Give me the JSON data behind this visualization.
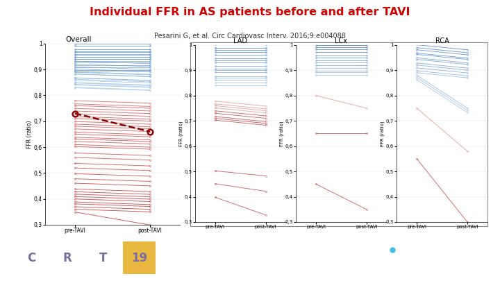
{
  "title": "Individual FFR in AS patients before and after TAVI",
  "subtitle": "Pesarini G, et al. Circ Cardiovasc Interv. 2016;9:e004088",
  "title_color": "#cc0000",
  "subtitle_color": "#333333",
  "overall_label": "Overall",
  "overall_blue_pre": [
    1.0,
    0.99,
    0.98,
    0.97,
    0.97,
    0.96,
    0.96,
    0.95,
    0.95,
    0.94,
    0.94,
    0.93,
    0.93,
    0.93,
    0.92,
    0.92,
    0.91,
    0.91,
    0.9,
    0.9,
    0.9,
    0.89,
    0.89,
    0.89,
    0.88,
    0.88,
    0.87,
    0.87,
    0.86,
    0.86,
    0.85,
    0.85,
    0.84,
    0.84,
    0.83,
    0.83
  ],
  "overall_blue_post": [
    1.0,
    0.99,
    0.98,
    0.97,
    0.97,
    0.96,
    0.96,
    0.95,
    0.95,
    0.94,
    0.94,
    0.93,
    0.93,
    0.92,
    0.92,
    0.91,
    0.91,
    0.9,
    0.9,
    0.9,
    0.89,
    0.89,
    0.88,
    0.88,
    0.87,
    0.87,
    0.86,
    0.86,
    0.85,
    0.85,
    0.84,
    0.84,
    0.83,
    0.83,
    0.82,
    0.82
  ],
  "overall_red_pre": [
    0.78,
    0.77,
    0.76,
    0.75,
    0.74,
    0.73,
    0.72,
    0.71,
    0.7,
    0.69,
    0.68,
    0.67,
    0.66,
    0.65,
    0.64,
    0.63,
    0.62,
    0.61,
    0.6,
    0.58,
    0.56,
    0.54,
    0.52,
    0.5,
    0.48,
    0.46,
    0.44,
    0.43,
    0.42,
    0.41,
    0.4,
    0.39,
    0.38,
    0.37,
    0.36,
    0.35
  ],
  "overall_red_post": [
    0.77,
    0.76,
    0.75,
    0.74,
    0.73,
    0.72,
    0.71,
    0.7,
    0.69,
    0.68,
    0.67,
    0.66,
    0.65,
    0.64,
    0.63,
    0.62,
    0.61,
    0.6,
    0.59,
    0.57,
    0.55,
    0.53,
    0.51,
    0.49,
    0.47,
    0.45,
    0.43,
    0.42,
    0.41,
    0.4,
    0.39,
    0.38,
    0.37,
    0.36,
    0.35,
    0.3
  ],
  "mean_pre": 0.73,
  "mean_post": 0.66,
  "lad_blue_pre": [
    1.0,
    0.99,
    0.98,
    0.97,
    0.96,
    0.95,
    0.94,
    0.93,
    0.92,
    0.91,
    0.9,
    0.89,
    0.88,
    0.87,
    0.86,
    0.85,
    0.84
  ],
  "lad_blue_post": [
    1.0,
    0.99,
    0.98,
    0.97,
    0.96,
    0.95,
    0.94,
    0.93,
    0.92,
    0.91,
    0.9,
    0.89,
    0.88,
    0.87,
    0.86,
    0.85,
    0.84
  ],
  "lad_red_pre": [
    0.78,
    0.77,
    0.76,
    0.75,
    0.74,
    0.73,
    0.72,
    0.71,
    0.7,
    0.5,
    0.45,
    0.4
  ],
  "lad_red_post": [
    0.76,
    0.75,
    0.74,
    0.73,
    0.72,
    0.71,
    0.7,
    0.69,
    0.68,
    0.48,
    0.42,
    0.33
  ],
  "lcx_blue_pre": [
    1.0,
    0.99,
    0.98,
    0.97,
    0.96,
    0.95,
    0.94,
    0.93,
    0.92,
    0.91,
    0.9,
    0.89,
    0.88
  ],
  "lcx_blue_post": [
    1.0,
    0.99,
    0.98,
    0.97,
    0.96,
    0.95,
    0.94,
    0.93,
    0.92,
    0.91,
    0.9,
    0.89,
    0.88
  ],
  "lcx_red_pre": [
    0.8,
    0.65,
    0.45
  ],
  "lcx_red_post": [
    0.75,
    0.65,
    0.35
  ],
  "rca_blue_pre": [
    1.0,
    0.99,
    0.98,
    0.97,
    0.96,
    0.95,
    0.94,
    0.93,
    0.92,
    0.91,
    0.9,
    0.89,
    0.88,
    0.87,
    0.86
  ],
  "rca_blue_post": [
    0.98,
    0.97,
    0.96,
    0.95,
    0.94,
    0.93,
    0.92,
    0.91,
    0.9,
    0.89,
    0.88,
    0.87,
    0.75,
    0.74,
    0.73
  ],
  "rca_red_pre": [
    0.75,
    0.55
  ],
  "rca_red_post": [
    0.58,
    0.3
  ],
  "blue_dark": "#3050a0",
  "blue_mid": "#5080c8",
  "blue_light": "#a0b8e0",
  "red_dark": "#a00000",
  "red_mid": "#c04040",
  "red_light": "#e09090",
  "mean_color": "#8B0000",
  "footer_color": "#7c6f9f",
  "ylim": [
    0.3,
    1.0
  ],
  "yticks": [
    0.3,
    0.4,
    0.5,
    0.6,
    0.7,
    0.8,
    0.9,
    1.0
  ]
}
